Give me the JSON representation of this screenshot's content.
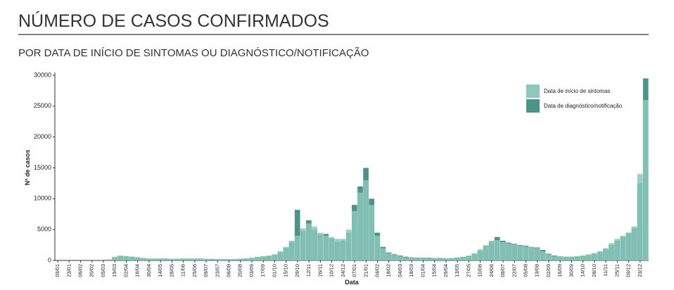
{
  "chart_data": {
    "type": "bar",
    "title": "NÚMERO DE CASOS CONFIRMADOS",
    "subtitle": "POR DATA DE INÍCIO DE SINTOMAS OU DIAGNÓSTICO/NOTIFICAÇÃO",
    "x_label": "Data",
    "y_label": "Nº de casos",
    "categories": [
      "09/01",
      null,
      "23/01",
      null,
      "06/02",
      null,
      "20/02",
      null,
      "05/03",
      null,
      "19/03",
      null,
      "02/04",
      null,
      "16/04",
      null,
      "30/04",
      null,
      "14/05",
      null,
      "28/05",
      null,
      "11/06",
      null,
      "25/06",
      null,
      "09/07",
      null,
      "23/07",
      null,
      "06/08",
      null,
      "20/08",
      null,
      "03/09",
      null,
      "17/09",
      null,
      "01/10",
      null,
      "15/10",
      null,
      "29/10",
      null,
      "12/11",
      null,
      "26/11",
      null,
      "10/12",
      null,
      "24/12",
      null,
      "07/01",
      null,
      "21/01",
      null,
      "04/02",
      null,
      "18/02",
      null,
      "04/03",
      null,
      "18/03",
      null,
      "01/04",
      null,
      "15/04",
      null,
      "29/04",
      null,
      "13/05",
      null,
      "27/05",
      null,
      "10/06",
      null,
      "24/06",
      null,
      "08/07",
      null,
      "22/07",
      null,
      "05/08",
      null,
      "19/08",
      null,
      "02/09",
      null,
      "16/09",
      null,
      "30/09",
      null,
      "14/10",
      null,
      "28/10",
      null,
      "11/11",
      null,
      "25/11",
      null,
      "09/12",
      null,
      "23/12",
      null
    ],
    "series": [
      {
        "name": "Data de diagnóstico/notificação",
        "color": "#4e9389",
        "values": [
          0,
          0,
          0,
          0,
          0,
          0,
          0,
          0,
          0,
          100,
          500,
          700,
          700,
          600,
          500,
          400,
          300,
          300,
          300,
          300,
          250,
          250,
          300,
          300,
          300,
          300,
          250,
          250,
          200,
          200,
          200,
          200,
          250,
          300,
          400,
          500,
          600,
          700,
          900,
          1300,
          2000,
          3000,
          8200,
          4800,
          6500,
          5000,
          4200,
          4300,
          3600,
          3000,
          3200,
          4500,
          9000,
          12000,
          15000,
          10000,
          4500,
          2200,
          1300,
          1000,
          800,
          600,
          500,
          450,
          450,
          450,
          400,
          400,
          350,
          350,
          450,
          550,
          700,
          1000,
          1600,
          2300,
          3000,
          3800,
          3200,
          2900,
          2700,
          2500,
          2400,
          2200,
          2100,
          1700,
          1100,
          800,
          650,
          600,
          600,
          650,
          750,
          900,
          1100,
          1400,
          1800,
          2500,
          3200,
          3800,
          4500,
          5200,
          12500,
          29500
        ]
      },
      {
        "name": "Data de início de sintomas",
        "color": "#8cc7bb",
        "values": [
          0,
          0,
          0,
          0,
          0,
          0,
          0,
          0,
          0,
          200,
          600,
          800,
          700,
          600,
          500,
          400,
          300,
          300,
          300,
          250,
          250,
          300,
          300,
          300,
          300,
          250,
          250,
          200,
          200,
          200,
          200,
          250,
          300,
          350,
          450,
          600,
          700,
          800,
          1000,
          1500,
          2200,
          3200,
          4000,
          5200,
          6000,
          5500,
          4500,
          4000,
          3800,
          3500,
          3500,
          5000,
          8000,
          11000,
          13000,
          9000,
          4000,
          2000,
          1200,
          900,
          700,
          500,
          450,
          400,
          400,
          400,
          400,
          350,
          350,
          400,
          500,
          600,
          800,
          1200,
          1800,
          2500,
          3200,
          3300,
          3000,
          2800,
          2600,
          2400,
          2300,
          2200,
          2000,
          1500,
          1000,
          700,
          600,
          600,
          600,
          700,
          800,
          1000,
          1200,
          1500,
          2000,
          2800,
          3500,
          4000,
          4500,
          5500,
          14000,
          26000
        ]
      }
    ],
    "ylim": [
      0,
      30000
    ],
    "yticks": [
      0,
      5000,
      10000,
      15000,
      20000,
      25000,
      30000
    ],
    "grid": false,
    "legend": "top-right"
  }
}
